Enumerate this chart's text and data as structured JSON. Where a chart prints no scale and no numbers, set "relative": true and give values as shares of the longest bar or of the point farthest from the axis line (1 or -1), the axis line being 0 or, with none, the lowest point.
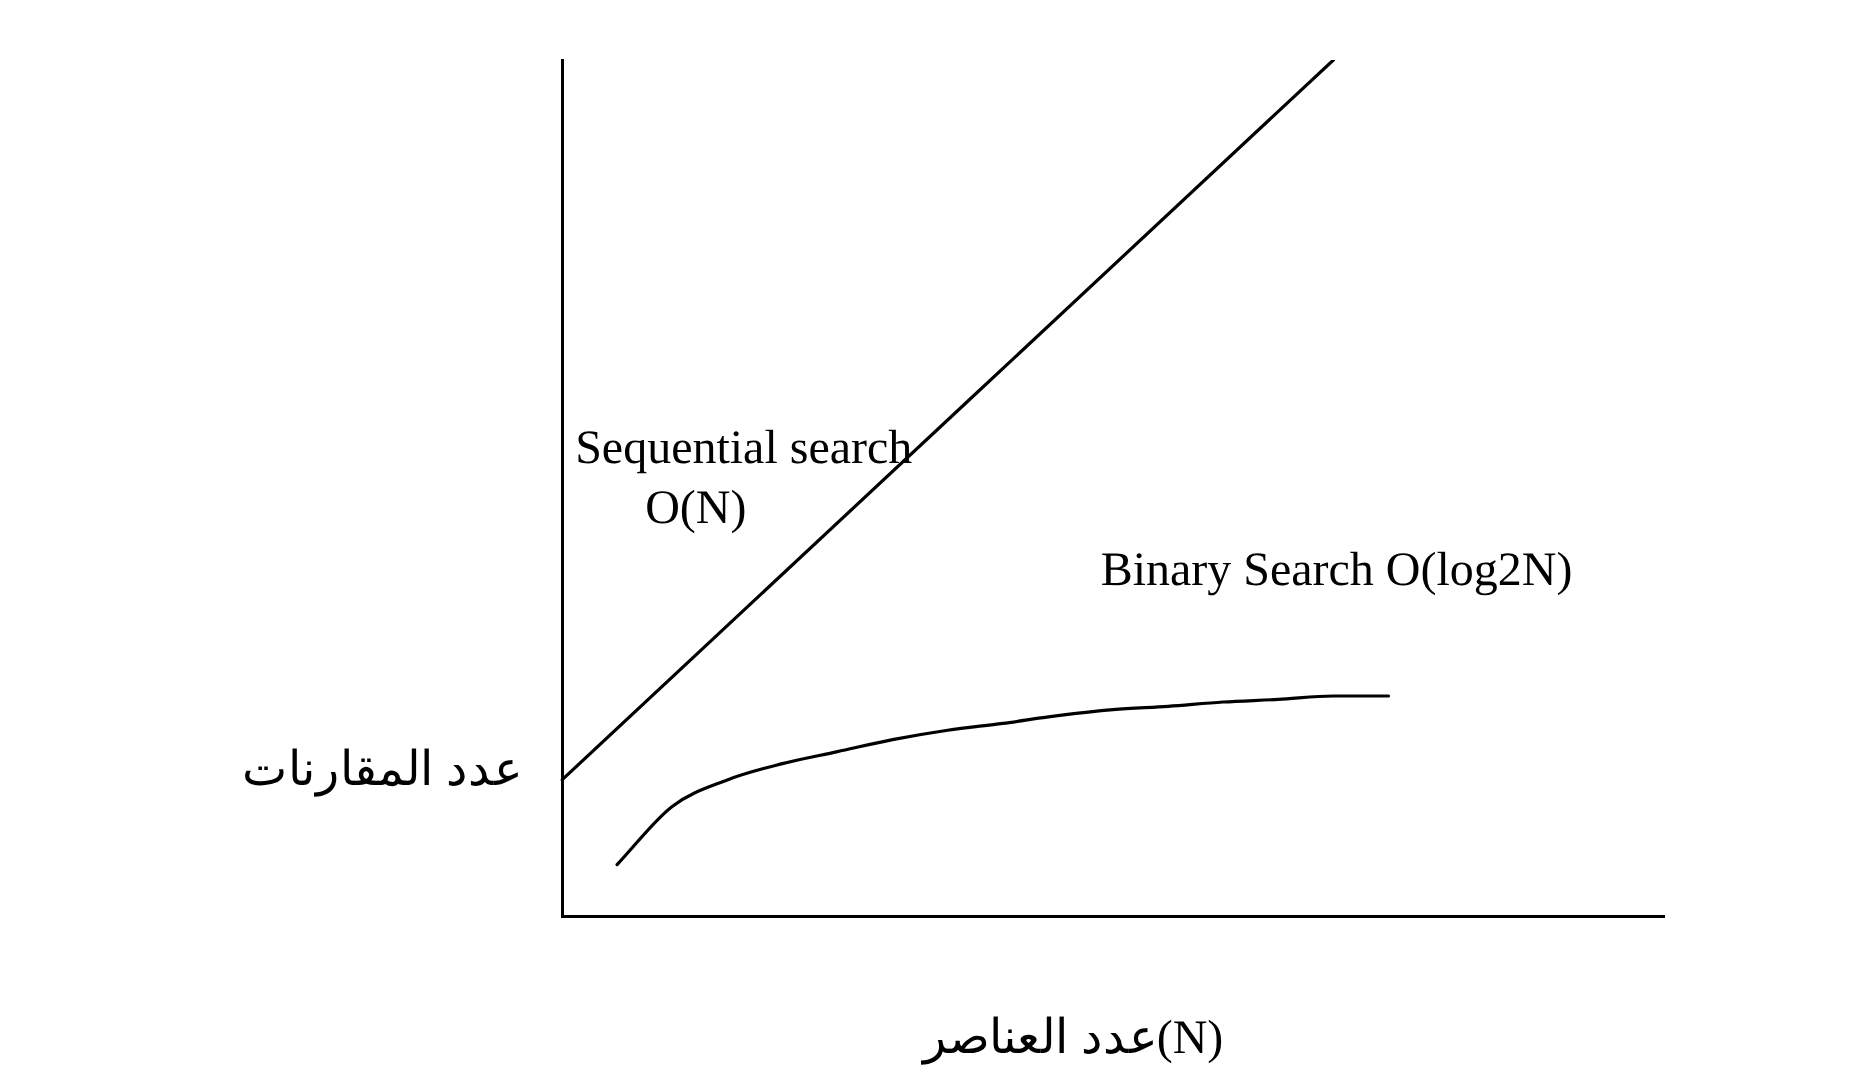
{
  "chart_data": {
    "type": "line",
    "relative": true,
    "xlabel": "عدد العناصر(N)",
    "ylabel": "عدد المقارنات",
    "grid": false,
    "legend": false,
    "marker": "none",
    "line_style": "solid",
    "categories": [
      null,
      null,
      null,
      null,
      null,
      null,
      null,
      null,
      null,
      null,
      null,
      null,
      null,
      null,
      null,
      null,
      null,
      null,
      null,
      null,
      null
    ],
    "series": [
      {
        "name": "Sequential search O(N)",
        "color": "#000000",
        "values": [
          0.159,
          null,
          null,
          null,
          null,
          null,
          null,
          null,
          null,
          null,
          null,
          null,
          null,
          null,
          1,
          null,
          null,
          null,
          null,
          null,
          null
        ]
      },
      {
        "name": "Binary Search O(log2N)",
        "color": "#000000",
        "values": [
          null,
          0.06,
          0.128,
          0.159,
          0.178,
          0.192,
          0.206,
          0.217,
          0.225,
          0.234,
          0.241,
          0.245,
          0.25,
          0.253,
          0.257,
          0.257,
          null,
          null,
          null,
          null,
          null
        ]
      }
    ]
  }
}
